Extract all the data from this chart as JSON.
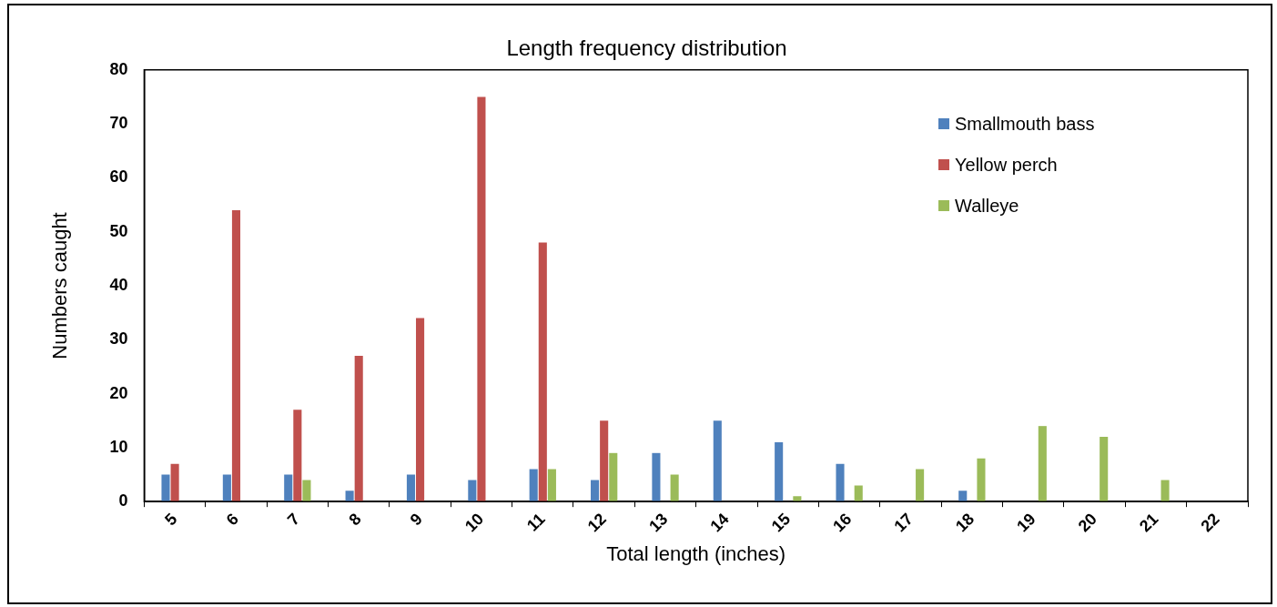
{
  "chart_data": {
    "type": "bar",
    "title": "Length frequency distribution",
    "xlabel": "Total length (inches)",
    "ylabel": "Numbers caught",
    "categories": [
      "5",
      "6",
      "7",
      "8",
      "9",
      "10",
      "11",
      "12",
      "13",
      "14",
      "15",
      "16",
      "17",
      "18",
      "19",
      "20",
      "21",
      "22"
    ],
    "series": [
      {
        "name": "Smallmouth bass",
        "color": "#4f81bd",
        "values": [
          5,
          5,
          5,
          2,
          5,
          4,
          6,
          4,
          9,
          15,
          11,
          7,
          0,
          2,
          0,
          0,
          0,
          0
        ]
      },
      {
        "name": "Yellow perch",
        "color": "#c0504d",
        "values": [
          7,
          54,
          17,
          27,
          34,
          75,
          48,
          15,
          0,
          0,
          0,
          0,
          0,
          0,
          0,
          0,
          0,
          0
        ]
      },
      {
        "name": "Walleye",
        "color": "#9bbb59",
        "values": [
          0,
          0,
          4,
          0,
          0,
          0,
          6,
          9,
          5,
          0,
          1,
          3,
          6,
          8,
          14,
          12,
          4,
          0
        ]
      }
    ],
    "ylim": [
      0,
      80
    ],
    "yticks": [
      0,
      10,
      20,
      30,
      40,
      50,
      60,
      70,
      80
    ],
    "grid": false,
    "legend": "top right"
  }
}
